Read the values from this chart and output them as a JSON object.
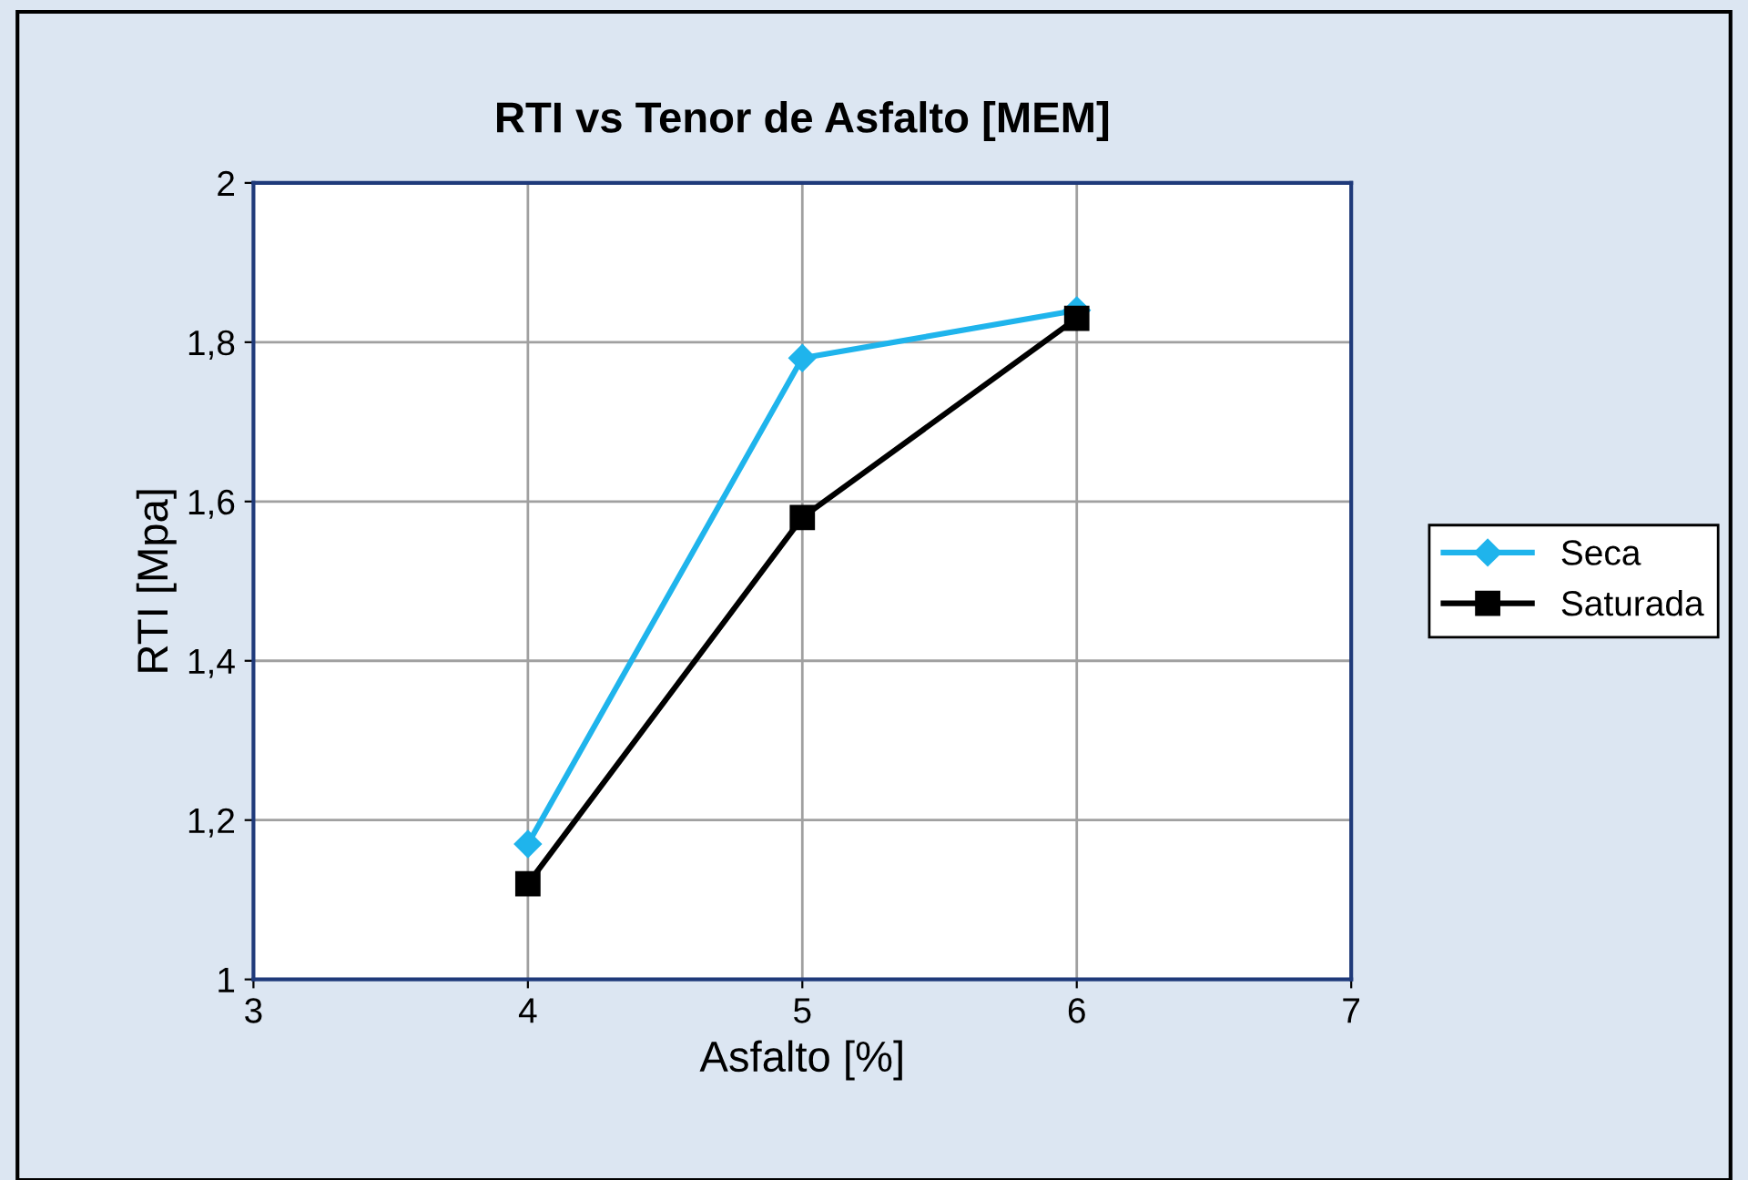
{
  "chart_data": {
    "type": "line",
    "title": "RTI vs Tenor de Asfalto [MEM]",
    "xlabel": "Asfalto [%]",
    "ylabel": "RTI [Mpa]",
    "x": [
      4,
      5,
      6
    ],
    "series": [
      {
        "name": "Seca",
        "color": "#1fb4ec",
        "values": [
          1.17,
          1.78,
          1.84
        ],
        "marker": "diamond"
      },
      {
        "name": "Saturada",
        "color": "#000000",
        "values": [
          1.12,
          1.58,
          1.83
        ],
        "marker": "square"
      }
    ],
    "xlim": [
      3,
      7
    ],
    "xticks": [
      3,
      4,
      5,
      6,
      7
    ],
    "ylim": [
      1,
      2
    ],
    "yticks": [
      1,
      {
        "value": 1.2,
        "label": "1,2"
      },
      {
        "value": 1.4,
        "label": "1,4"
      },
      {
        "value": 1.6,
        "label": "1,6"
      },
      {
        "value": 1.8,
        "label": "1,8"
      },
      2
    ],
    "grid": true,
    "legend": "right",
    "line_style": "solid"
  }
}
